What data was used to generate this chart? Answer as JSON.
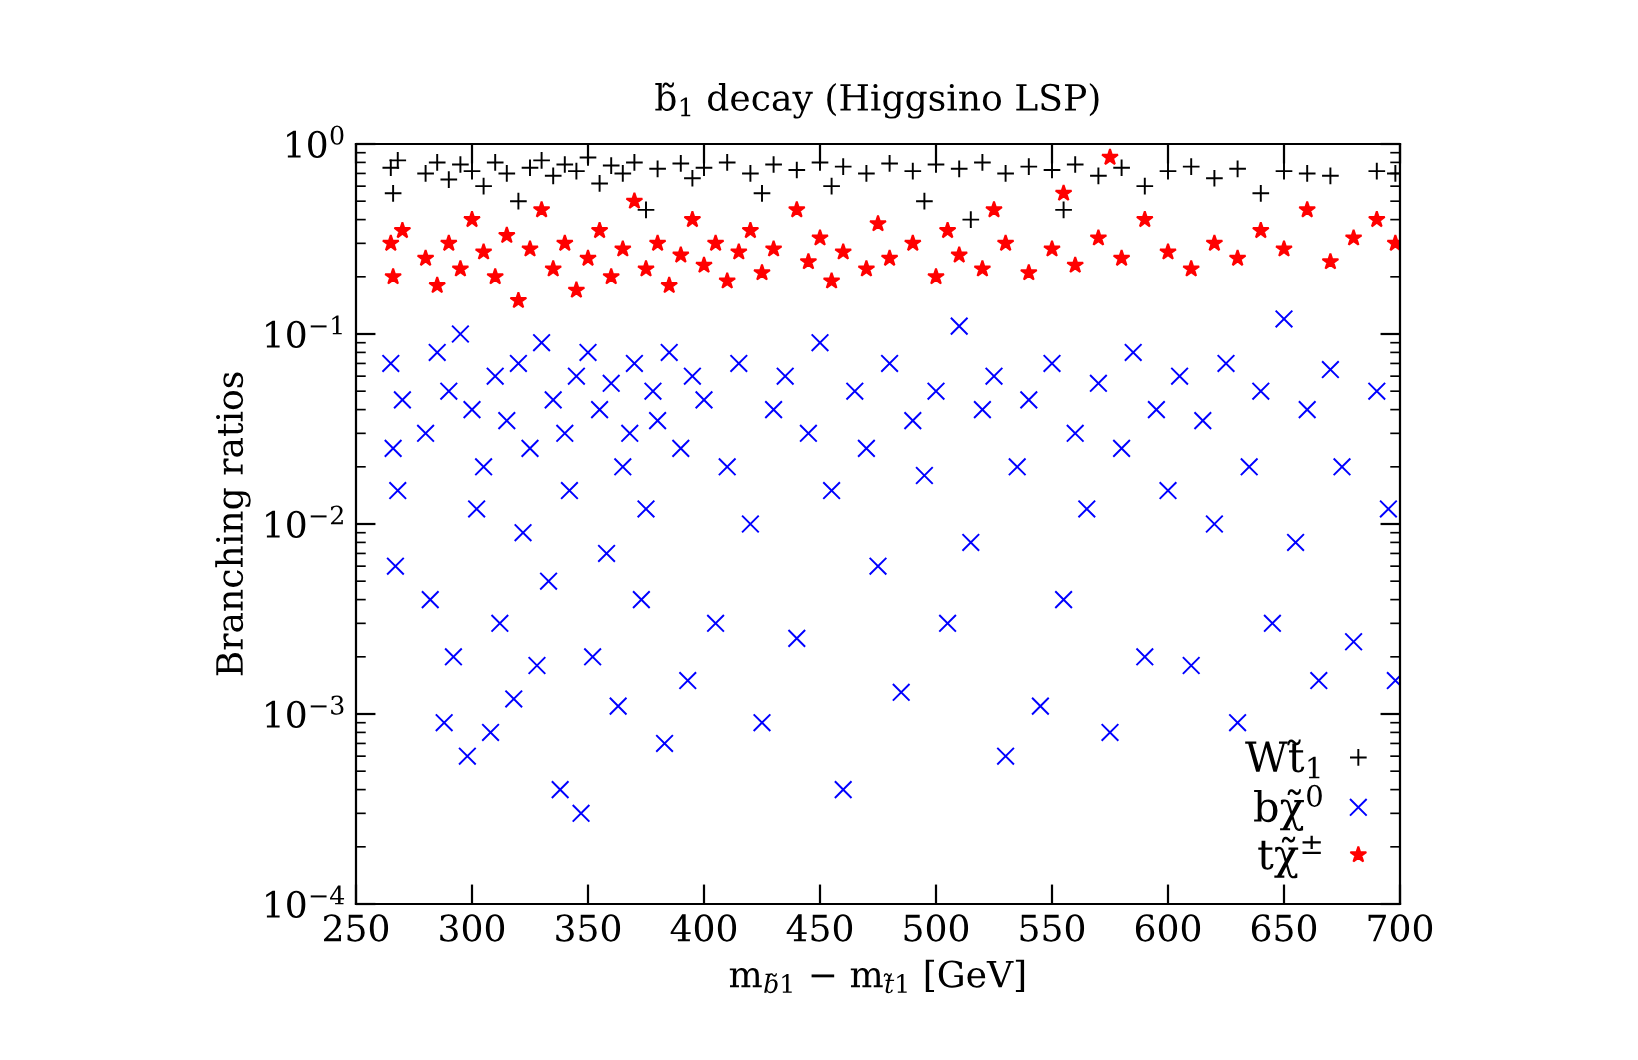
{
  "chart_data": {
    "type": "scatter",
    "title": "b̃$_{1}$ decay (Higgsino LSP)",
    "xlabel": "m$_{b̃1}$ − m$_{t̃1}$ [GeV]",
    "ylabel": "Branching ratios",
    "xlim": [
      250,
      700
    ],
    "xticks": [
      250,
      300,
      350,
      400,
      450,
      500,
      550,
      600,
      650,
      700
    ],
    "ylim": [
      0.0001,
      1
    ],
    "yticks": [
      {
        "value": 0.0001,
        "label": "10$^{−4}$"
      },
      {
        "value": 0.001,
        "label": "10$^{−3}$"
      },
      {
        "value": 0.01,
        "label": "10$^{−2}$"
      },
      {
        "value": 0.1,
        "label": "10$^{−1}$"
      },
      {
        "value": 1,
        "label": "10$^{0}$"
      }
    ],
    "log": "y",
    "grid": false,
    "legend": "bottom right",
    "series": [
      {
        "name": "Wt̃$_{1}$",
        "color": "#000000",
        "marker": "plus",
        "x": [
          265,
          266,
          268,
          280,
          285,
          290,
          295,
          300,
          305,
          310,
          315,
          320,
          325,
          330,
          335,
          340,
          345,
          350,
          355,
          360,
          365,
          370,
          375,
          380,
          390,
          395,
          400,
          410,
          420,
          425,
          430,
          440,
          450,
          455,
          460,
          470,
          480,
          490,
          495,
          500,
          510,
          515,
          520,
          530,
          540,
          550,
          555,
          560,
          570,
          580,
          590,
          600,
          610,
          620,
          630,
          640,
          650,
          660,
          670,
          690,
          698
        ],
        "values": [
          0.75,
          0.55,
          0.82,
          0.7,
          0.8,
          0.65,
          0.78,
          0.72,
          0.6,
          0.8,
          0.7,
          0.5,
          0.75,
          0.82,
          0.68,
          0.78,
          0.72,
          0.85,
          0.62,
          0.77,
          0.7,
          0.8,
          0.45,
          0.74,
          0.79,
          0.66,
          0.75,
          0.8,
          0.7,
          0.55,
          0.78,
          0.73,
          0.8,
          0.6,
          0.76,
          0.7,
          0.79,
          0.72,
          0.5,
          0.78,
          0.74,
          0.4,
          0.8,
          0.7,
          0.76,
          0.73,
          0.45,
          0.78,
          0.68,
          0.75,
          0.6,
          0.72,
          0.76,
          0.66,
          0.74,
          0.55,
          0.72,
          0.7,
          0.68,
          0.72,
          0.7
        ]
      },
      {
        "name": "bχ̃$^{0}$",
        "color": "#0000ff",
        "marker": "cross",
        "x": [
          265,
          266,
          267,
          268,
          270,
          280,
          282,
          285,
          288,
          290,
          292,
          295,
          298,
          300,
          302,
          305,
          308,
          310,
          312,
          315,
          318,
          320,
          322,
          325,
          328,
          330,
          333,
          335,
          338,
          340,
          342,
          345,
          347,
          350,
          352,
          355,
          358,
          360,
          363,
          365,
          368,
          370,
          373,
          375,
          378,
          380,
          383,
          385,
          390,
          393,
          395,
          400,
          405,
          410,
          415,
          420,
          425,
          430,
          435,
          440,
          445,
          450,
          455,
          460,
          465,
          470,
          475,
          480,
          485,
          490,
          495,
          500,
          505,
          510,
          515,
          520,
          525,
          530,
          535,
          540,
          545,
          550,
          555,
          560,
          565,
          570,
          575,
          580,
          585,
          590,
          595,
          600,
          605,
          610,
          615,
          620,
          625,
          630,
          635,
          640,
          645,
          650,
          655,
          660,
          665,
          670,
          675,
          680,
          690,
          695,
          698
        ],
        "values": [
          0.07,
          0.025,
          0.006,
          0.015,
          0.045,
          0.03,
          0.004,
          0.08,
          0.0009,
          0.05,
          0.002,
          0.1,
          0.0006,
          0.04,
          0.012,
          0.02,
          0.0008,
          0.06,
          0.003,
          0.035,
          0.0012,
          0.07,
          0.009,
          0.025,
          0.0018,
          0.09,
          0.005,
          0.045,
          0.0004,
          0.03,
          0.015,
          0.06,
          0.0003,
          0.08,
          0.002,
          0.04,
          0.007,
          0.055,
          0.0011,
          0.02,
          0.03,
          0.07,
          0.004,
          0.012,
          0.05,
          0.035,
          0.0007,
          0.08,
          0.025,
          0.0015,
          0.06,
          0.045,
          0.003,
          0.02,
          0.07,
          0.01,
          0.0009,
          0.04,
          0.06,
          0.0025,
          0.03,
          0.09,
          0.015,
          0.0004,
          0.05,
          0.025,
          0.006,
          0.07,
          0.0013,
          0.035,
          0.018,
          0.05,
          0.003,
          0.11,
          0.008,
          0.04,
          0.06,
          0.0006,
          0.02,
          0.045,
          0.0011,
          0.07,
          0.004,
          0.03,
          0.012,
          0.055,
          0.0008,
          0.025,
          0.08,
          0.002,
          0.04,
          0.015,
          0.06,
          0.0018,
          0.035,
          0.01,
          0.07,
          0.0009,
          0.02,
          0.05,
          0.003,
          0.12,
          0.008,
          0.04,
          0.0015,
          0.065,
          0.02,
          0.0024,
          0.05,
          0.012,
          0.0015
        ]
      },
      {
        "name": "tχ̃$^{±}$",
        "color": "#ff0000",
        "marker": "star",
        "x": [
          265,
          266,
          270,
          280,
          285,
          290,
          295,
          300,
          305,
          310,
          315,
          320,
          325,
          330,
          335,
          340,
          345,
          350,
          355,
          360,
          365,
          370,
          375,
          380,
          385,
          390,
          395,
          400,
          405,
          410,
          415,
          420,
          425,
          430,
          440,
          445,
          450,
          455,
          460,
          470,
          475,
          480,
          490,
          500,
          505,
          510,
          520,
          525,
          530,
          540,
          550,
          555,
          560,
          570,
          575,
          580,
          590,
          600,
          610,
          620,
          630,
          640,
          650,
          660,
          670,
          680,
          690,
          698
        ],
        "values": [
          0.3,
          0.2,
          0.35,
          0.25,
          0.18,
          0.3,
          0.22,
          0.4,
          0.27,
          0.2,
          0.33,
          0.15,
          0.28,
          0.45,
          0.22,
          0.3,
          0.17,
          0.25,
          0.35,
          0.2,
          0.28,
          0.5,
          0.22,
          0.3,
          0.18,
          0.26,
          0.4,
          0.23,
          0.3,
          0.19,
          0.27,
          0.35,
          0.21,
          0.28,
          0.45,
          0.24,
          0.32,
          0.19,
          0.27,
          0.22,
          0.38,
          0.25,
          0.3,
          0.2,
          0.35,
          0.26,
          0.22,
          0.45,
          0.3,
          0.21,
          0.28,
          0.55,
          0.23,
          0.32,
          0.85,
          0.25,
          0.4,
          0.27,
          0.22,
          0.3,
          0.25,
          0.35,
          0.28,
          0.45,
          0.24,
          0.32,
          0.4,
          0.3
        ]
      }
    ]
  }
}
